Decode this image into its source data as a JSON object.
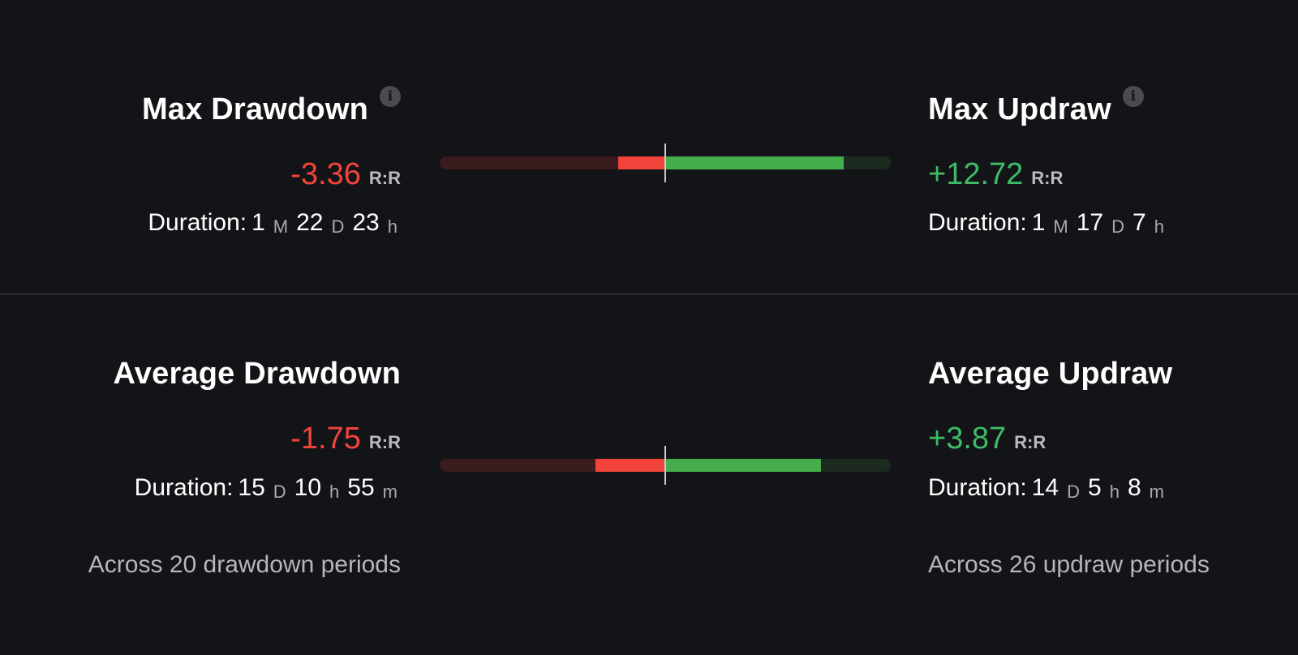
{
  "max": {
    "drawdown": {
      "title": "Max Drawdown",
      "value": "-3.36",
      "unit": "R:R",
      "duration_label": "Duration:",
      "duration": [
        {
          "num": "1",
          "unit": "M"
        },
        {
          "num": "22",
          "unit": "D"
        },
        {
          "num": "23",
          "unit": "h"
        }
      ]
    },
    "updraw": {
      "title": "Max Updraw",
      "value": "+12.72",
      "unit": "R:R",
      "duration_label": "Duration:",
      "duration": [
        {
          "num": "1",
          "unit": "M"
        },
        {
          "num": "17",
          "unit": "D"
        },
        {
          "num": "7",
          "unit": "h"
        }
      ]
    },
    "gauge": {
      "negative_fraction": 0.21,
      "positive_fraction": 0.79
    }
  },
  "average": {
    "drawdown": {
      "title": "Average Drawdown",
      "value": "-1.75",
      "unit": "R:R",
      "duration_label": "Duration:",
      "duration": [
        {
          "num": "15",
          "unit": "D"
        },
        {
          "num": "10",
          "unit": "h"
        },
        {
          "num": "55",
          "unit": "m"
        }
      ],
      "across": "Across 20 drawdown periods"
    },
    "updraw": {
      "title": "Average Updraw",
      "value": "+3.87",
      "unit": "R:R",
      "duration_label": "Duration:",
      "duration": [
        {
          "num": "14",
          "unit": "D"
        },
        {
          "num": "5",
          "unit": "h"
        },
        {
          "num": "8",
          "unit": "m"
        }
      ],
      "across": "Across 26 updraw periods"
    },
    "gauge": {
      "negative_fraction": 0.31,
      "positive_fraction": 0.69
    }
  },
  "colors": {
    "negative": "#f2443a",
    "positive": "#3dbb67",
    "background": "#131417"
  },
  "icons": {
    "info": "info-icon"
  }
}
